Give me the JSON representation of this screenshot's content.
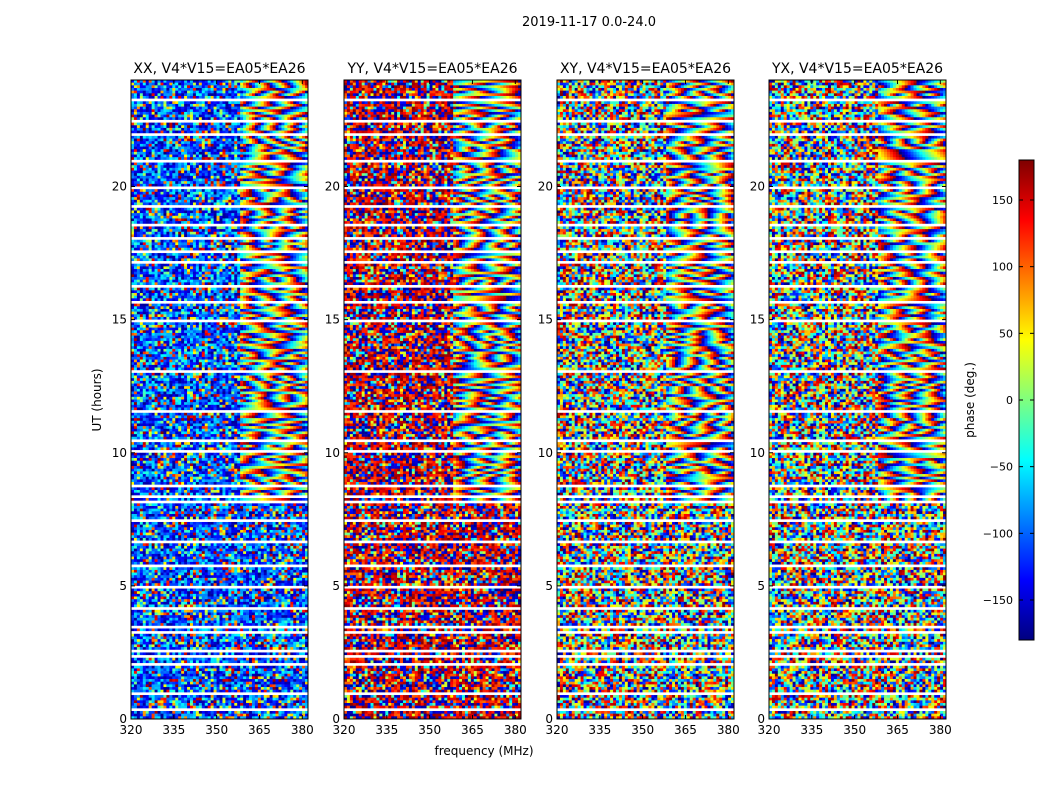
{
  "chart_data": {
    "type": "heatmap",
    "title": "2019-11-17 0.0-24.0",
    "xlabel": "frequency (MHz)",
    "ylabel": "UT (hours)",
    "xlim": [
      320,
      382
    ],
    "ylim": [
      0,
      24
    ],
    "xticks": [
      320,
      335,
      350,
      365,
      380
    ],
    "yticks": [
      0,
      5,
      10,
      15,
      20
    ],
    "colorbar": {
      "label": "phase (deg.)",
      "range": [
        -180,
        180
      ],
      "ticks": [
        150,
        100,
        50,
        0,
        -50,
        -100,
        -150
      ],
      "colormap": "jet",
      "colors": [
        "#00007f",
        "#0000ff",
        "#007fff",
        "#00ffff",
        "#7fff7f",
        "#ffff00",
        "#ff7f00",
        "#ff0000",
        "#7f0000"
      ]
    },
    "panels": [
      {
        "title": "XX, V4*V15=EA05*EA26",
        "dominant_phase": -110,
        "noise": 0.35
      },
      {
        "title": "YY, V4*V15=EA05*EA26",
        "dominant_phase": 160,
        "noise": 0.35
      },
      {
        "title": "XY, V4*V15=EA05*EA26",
        "dominant_phase": 0,
        "noise": 1.0
      },
      {
        "title": "YX, V4*V15=EA05*EA26",
        "dominant_phase": 0,
        "noise": 1.0
      }
    ],
    "flagged_gaps_hours": [
      0.35,
      0.9,
      2.05,
      2.3,
      2.55,
      3.2,
      3.45,
      4.1,
      4.9,
      5.75,
      6.6,
      7.4,
      8.1,
      8.35,
      8.75,
      10.05,
      10.4,
      11.55,
      13.1,
      15.0,
      15.65,
      16.3,
      17.15,
      17.6,
      18.05,
      18.55,
      19.3,
      20.0,
      20.95,
      22.0,
      22.45,
      23.3
    ]
  }
}
